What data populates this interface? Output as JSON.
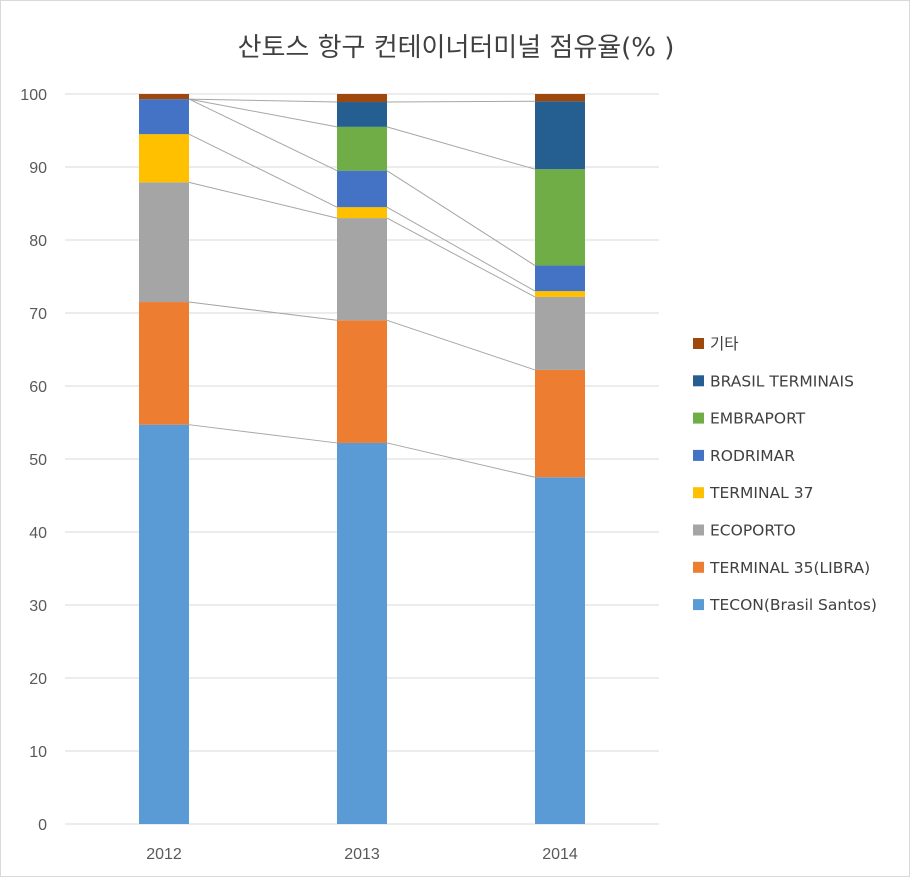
{
  "chart_data": {
    "type": "bar",
    "stacked": true,
    "title": "산토스 항구  컨테이너터미널 점유율(% )",
    "xlabel": "",
    "ylabel": "",
    "ylim": [
      0,
      100
    ],
    "yticks": [
      0,
      10,
      20,
      30,
      40,
      50,
      60,
      70,
      80,
      90,
      100
    ],
    "grid": true,
    "legend_position": "right",
    "series_lines": true,
    "categories": [
      "2012",
      "2013",
      "2014"
    ],
    "series": [
      {
        "name": "TECON(Brasil Santos)",
        "color": "#5b9bd5",
        "values": [
          54.7,
          52.2,
          47.5
        ]
      },
      {
        "name": "TERMINAL 35(LIBRA)",
        "color": "#ed7d31",
        "values": [
          16.8,
          16.8,
          14.7
        ]
      },
      {
        "name": "ECOPORTO",
        "color": "#a5a5a5",
        "values": [
          16.4,
          14.0,
          10.0
        ]
      },
      {
        "name": "TERMINAL 37",
        "color": "#ffc000",
        "values": [
          6.6,
          1.5,
          0.8
        ]
      },
      {
        "name": "RODRIMAR",
        "color": "#4472c4",
        "values": [
          4.8,
          5.0,
          3.5
        ]
      },
      {
        "name": "EMBRAPORT",
        "color": "#70ad47",
        "values": [
          0.0,
          6.0,
          13.2
        ]
      },
      {
        "name": "BRASIL TERMINAIS",
        "color": "#255e91",
        "values": [
          0.0,
          3.4,
          9.3
        ]
      },
      {
        "name": "기타",
        "color": "#9e480e",
        "values": [
          0.7,
          1.1,
          1.0
        ]
      }
    ]
  }
}
